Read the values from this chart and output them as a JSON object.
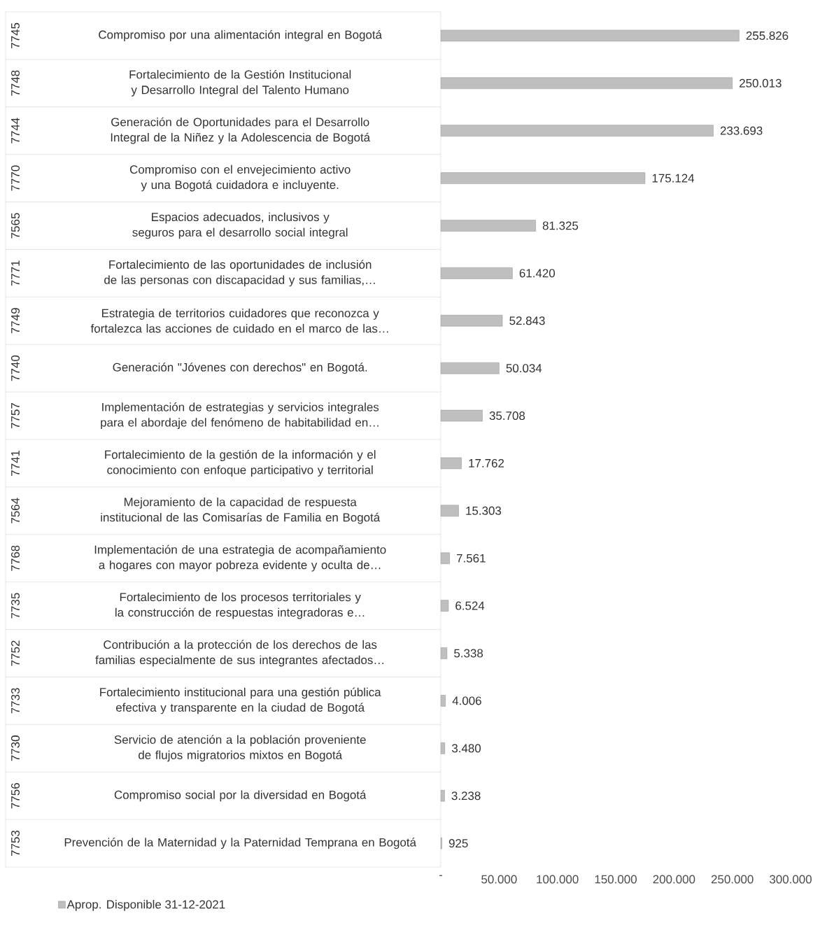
{
  "chart_data": {
    "type": "bar",
    "orientation": "horizontal",
    "categories": [
      "Compromiso por una alimentación integral en Bogotá",
      "Fortalecimiento de la Gestión Institucional y Desarrollo Integral del Talento Humano",
      "Generación de Oportunidades para el Desarrollo Integral de la Niñez y la Adolescencia de Bogotá",
      "Compromiso con el envejecimiento activo y una Bogotá cuidadora e incluyente.",
      "Espacios adecuados, inclusivos y seguros para el desarrollo social integral",
      "Fortalecimiento de las oportunidades de inclusión de las personas con discapacidad y sus familias,…",
      "Estrategia de territorios cuidadores que reconozca y fortalezca las acciones de cuidado en el marco de las…",
      "Generación \"Jóvenes con derechos\" en Bogotá.",
      "Implementación de estrategias y servicios integrales para el abordaje del fenómeno de habitabilidad en…",
      "Fortalecimiento de la gestión de la información y el conocimiento con enfoque participativo y territorial",
      "Mejoramiento de la capacidad de respuesta institucional de las Comisarías de Familia en Bogotá",
      "Implementación de una estrategia de acompañamiento a hogares con mayor pobreza evidente y oculta de…",
      "Fortalecimiento de los procesos territoriales y la construcción de respuestas integradoras e…",
      "Contribución a la protección de los derechos de las familias especialmente de sus integrantes afectados…",
      "Fortalecimiento institucional para una gestión pública efectiva y transparente en la ciudad de Bogotá",
      "Servicio de atención a la población proveniente de flujos migratorios mixtos en Bogotá",
      "Compromiso social por la diversidad en Bogotá",
      "Prevención de la Maternidad y la Paternidad Temprana en Bogotá"
    ],
    "annotations": [
      "7745",
      "7748",
      "7744",
      "7770",
      "7565",
      "7771",
      "7749",
      "7740",
      "7757",
      "7741",
      "7564",
      "7768",
      "7735",
      "7752",
      "7733",
      "7730",
      "7756",
      "7753"
    ],
    "series": [
      {
        "name": "Aprop. Disponible 31-12-2021",
        "color": "#bfbfbf",
        "values": [
          255826,
          250013,
          233693,
          175124,
          81325,
          61420,
          52843,
          50034,
          35708,
          17762,
          15303,
          7561,
          6524,
          5338,
          4006,
          3480,
          3238,
          925
        ],
        "value_labels": [
          "255.826",
          "250.013",
          "233.693",
          "175.124",
          "81.325",
          "61.420",
          "52.843",
          "50.034",
          "35.708",
          "17.762",
          "15.303",
          "7.561",
          "6.524",
          "5.338",
          "4.006",
          "3.480",
          "3.238",
          "925"
        ]
      }
    ],
    "xlim": [
      0,
      300000
    ],
    "xticks": [
      {
        "value": 0,
        "label": "-"
      },
      {
        "value": 50000,
        "label": "50.000"
      },
      {
        "value": 100000,
        "label": "100.000"
      },
      {
        "value": 150000,
        "label": "150.000"
      },
      {
        "value": 200000,
        "label": "200.000"
      },
      {
        "value": 250000,
        "label": "250.000"
      },
      {
        "value": 300000,
        "label": "300.000"
      }
    ],
    "legend": "bottom left",
    "grid": false
  }
}
